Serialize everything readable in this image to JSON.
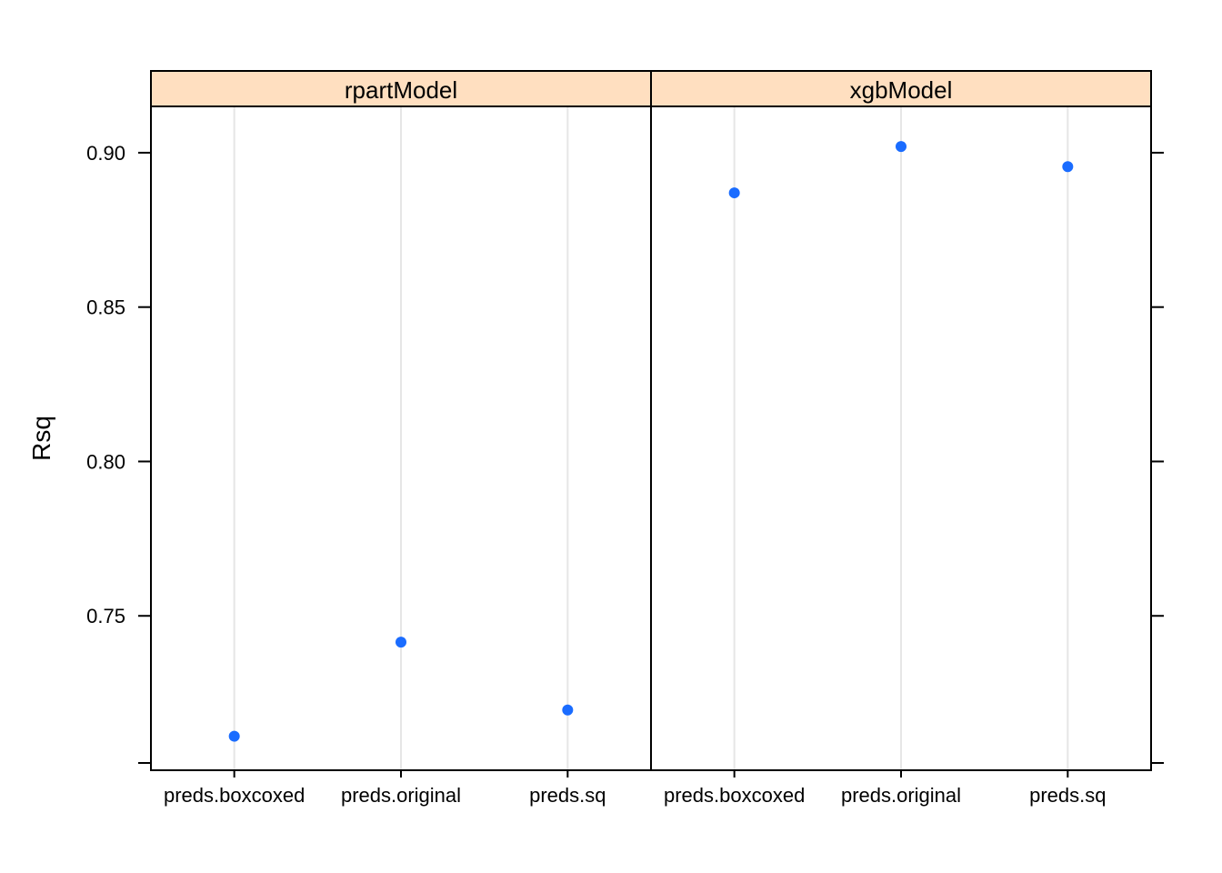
{
  "chart_data": {
    "type": "scatter",
    "ylabel": "Rsq",
    "ylim": [
      0.7,
      0.915
    ],
    "yticks": [
      0.75,
      0.8,
      0.85,
      0.9
    ],
    "ytick_labels": [
      "0.75",
      "0.80",
      "0.85",
      "0.90"
    ],
    "categories": [
      "preds.boxcoxed",
      "preds.original",
      "preds.sq"
    ],
    "grid": "vertical",
    "colors": {
      "point": "#1a6cff",
      "strip": "#ffdfc0",
      "gridline": "#e6e6e6",
      "frame": "#000000"
    },
    "panels": [
      {
        "name": "rpartModel",
        "values": [
          0.711,
          0.7415,
          0.7195
        ]
      },
      {
        "name": "xgbModel",
        "values": [
          0.887,
          0.902,
          0.8955
        ]
      }
    ]
  }
}
